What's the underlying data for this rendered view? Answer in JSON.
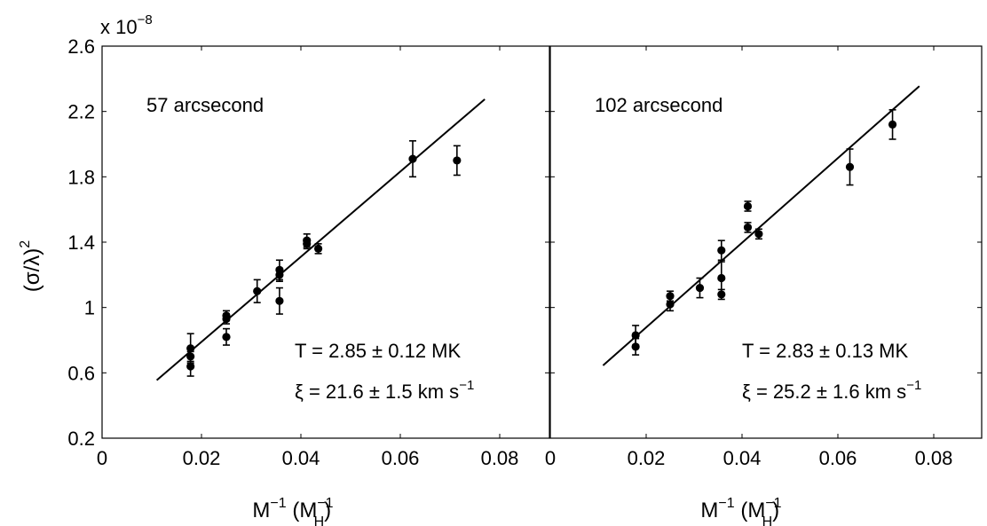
{
  "figure": {
    "scale_base": "x 10",
    "scale_exp": "−8",
    "ylabel": {
      "open": "(σ/λ)",
      "sup": "2"
    },
    "xlabel": {
      "base": "M",
      "sup1": "−1",
      "open": " (M",
      "sup2": "−1",
      "sub": "H",
      "close": ")"
    }
  },
  "chart_data": [
    {
      "type": "scatter",
      "panel_label": "57 arcsecond",
      "xlim": [
        0,
        0.09
      ],
      "ylim": [
        0.2,
        2.6
      ],
      "scale_factor": "1e-8",
      "xticks": [
        "0",
        "0.02",
        "0.04",
        "0.06",
        "0.08"
      ],
      "yticks": [
        "0.2",
        "0.6",
        "1",
        "1.4",
        "1.8",
        "2.2",
        "2.6"
      ],
      "grid": false,
      "points": [
        {
          "x": 0.0178,
          "y": 0.75,
          "err": 0.09
        },
        {
          "x": 0.0178,
          "y": 0.7,
          "err": 0.03
        },
        {
          "x": 0.0178,
          "y": 0.64,
          "err": 0.06
        },
        {
          "x": 0.025,
          "y": 0.95,
          "err": 0.03
        },
        {
          "x": 0.025,
          "y": 0.93,
          "err": 0.03
        },
        {
          "x": 0.025,
          "y": 0.82,
          "err": 0.05
        },
        {
          "x": 0.0312,
          "y": 1.1,
          "err": 0.07
        },
        {
          "x": 0.0357,
          "y": 1.23,
          "err": 0.06
        },
        {
          "x": 0.0357,
          "y": 1.2,
          "err": 0.04
        },
        {
          "x": 0.0357,
          "y": 1.04,
          "err": 0.08
        },
        {
          "x": 0.0412,
          "y": 1.41,
          "err": 0.04
        },
        {
          "x": 0.0412,
          "y": 1.39,
          "err": 0.03
        },
        {
          "x": 0.0435,
          "y": 1.36,
          "err": 0.03
        },
        {
          "x": 0.0625,
          "y": 1.91,
          "err": 0.11
        },
        {
          "x": 0.0714,
          "y": 1.9,
          "err": 0.09
        }
      ],
      "fit_line": [
        {
          "x": 0.011,
          "y": 0.555
        },
        {
          "x": 0.077,
          "y": 2.275
        }
      ],
      "annotations": {
        "temperature": {
          "text": "T = 2.85 ± 0.12 MK"
        },
        "xi": {
          "sym": "ξ",
          "text": " = 21.6 ± 1.5 km s",
          "sup": "−1"
        }
      }
    },
    {
      "type": "scatter",
      "panel_label": "102 arcsecond",
      "xlim": [
        0,
        0.09
      ],
      "ylim": [
        0.2,
        2.6
      ],
      "scale_factor": "1e-8",
      "xticks": [
        "0",
        "0.02",
        "0.04",
        "0.06",
        "0.08"
      ],
      "yticks": [
        "0.2",
        "0.6",
        "1",
        "1.4",
        "1.8",
        "2.2",
        "2.6"
      ],
      "grid": false,
      "points": [
        {
          "x": 0.0178,
          "y": 0.83,
          "err": 0.06
        },
        {
          "x": 0.0178,
          "y": 0.76,
          "err": 0.05
        },
        {
          "x": 0.025,
          "y": 1.07,
          "err": 0.03
        },
        {
          "x": 0.025,
          "y": 1.02,
          "err": 0.04
        },
        {
          "x": 0.0312,
          "y": 1.12,
          "err": 0.06
        },
        {
          "x": 0.0357,
          "y": 1.35,
          "err": 0.06
        },
        {
          "x": 0.0357,
          "y": 1.18,
          "err": 0.1
        },
        {
          "x": 0.0357,
          "y": 1.08,
          "err": 0.03
        },
        {
          "x": 0.0412,
          "y": 1.62,
          "err": 0.03
        },
        {
          "x": 0.0412,
          "y": 1.49,
          "err": 0.03
        },
        {
          "x": 0.0435,
          "y": 1.45,
          "err": 0.03
        },
        {
          "x": 0.0625,
          "y": 1.86,
          "err": 0.11
        },
        {
          "x": 0.0714,
          "y": 2.12,
          "err": 0.09
        }
      ],
      "fit_line": [
        {
          "x": 0.011,
          "y": 0.645
        },
        {
          "x": 0.077,
          "y": 2.355
        }
      ],
      "annotations": {
        "temperature": {
          "text": "T = 2.83 ± 0.13 MK"
        },
        "xi": {
          "sym": "ξ",
          "text": " = 25.2 ± 1.6 km s",
          "sup": "−1"
        }
      }
    }
  ]
}
